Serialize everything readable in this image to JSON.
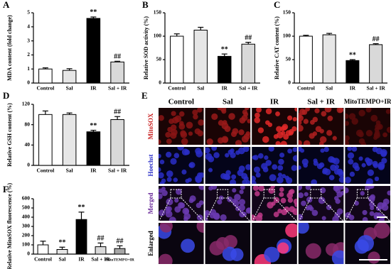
{
  "chart_data": [
    {
      "type": "bar",
      "panel": "A",
      "y_label": "MDA content (fold change)",
      "categories": [
        "Control",
        "Sal",
        "IR",
        "Sal + IR"
      ],
      "values": [
        1.0,
        0.9,
        4.6,
        1.5
      ],
      "errors": [
        0.08,
        0.12,
        0.1,
        0.05
      ],
      "colors": [
        "#ffffff",
        "#e6e6e6",
        "#000000",
        "#d9d9d9"
      ],
      "significance": [
        null,
        null,
        "**",
        "##"
      ],
      "ylim": [
        0,
        5
      ],
      "yticks": [
        0,
        1,
        2,
        3,
        4,
        5
      ]
    },
    {
      "type": "bar",
      "panel": "B",
      "y_label": "Relative SOD activity (%)",
      "categories": [
        "Control",
        "Sal",
        "IR",
        "Sal + IR"
      ],
      "values": [
        100,
        113,
        57,
        83
      ],
      "errors": [
        5,
        6,
        5,
        4
      ],
      "colors": [
        "#ffffff",
        "#e6e6e6",
        "#000000",
        "#d9d9d9"
      ],
      "significance": [
        null,
        null,
        "**",
        "##"
      ],
      "ylim": [
        0,
        150
      ],
      "yticks": [
        0,
        50,
        100,
        150
      ]
    },
    {
      "type": "bar",
      "panel": "C",
      "y_label": "Relative CAT content (%)",
      "categories": [
        "Control",
        "Sal",
        "IR",
        "Sal + IR"
      ],
      "values": [
        100,
        103,
        48,
        82
      ],
      "errors": [
        2,
        3,
        2,
        2
      ],
      "colors": [
        "#ffffff",
        "#e6e6e6",
        "#000000",
        "#d9d9d9"
      ],
      "significance": [
        null,
        null,
        "**",
        "##"
      ],
      "ylim": [
        0,
        150
      ],
      "yticks": [
        0,
        50,
        100,
        150
      ]
    },
    {
      "type": "bar",
      "panel": "D",
      "y_label": "Relative GSH content (%)",
      "categories": [
        "Control",
        "Sal",
        "IR",
        "Sal + IR"
      ],
      "values": [
        100,
        100,
        66,
        90
      ],
      "errors": [
        7,
        3,
        3,
        6
      ],
      "colors": [
        "#ffffff",
        "#e6e6e6",
        "#000000",
        "#d9d9d9"
      ],
      "significance": [
        null,
        null,
        "**",
        "##"
      ],
      "ylim": [
        0,
        120
      ],
      "yticks": [
        0,
        40,
        80,
        120
      ]
    },
    {
      "type": "bar",
      "panel": "F",
      "y_label": "Relative MitoSOX fluorescence (%)",
      "categories": [
        "Control",
        "Sal",
        "IR",
        "Sal + IR",
        "MitoTEMPO+IR"
      ],
      "values": [
        100,
        50,
        375,
        80,
        60
      ],
      "errors": [
        40,
        25,
        80,
        40,
        30
      ],
      "colors": [
        "#ffffff",
        "#e6e6e6",
        "#000000",
        "#d9d9d9",
        "#a6a6a6"
      ],
      "significance": [
        null,
        "**",
        "**",
        "##",
        "##"
      ],
      "ylim": [
        0,
        600
      ],
      "yticks": [
        0,
        100,
        200,
        300,
        400,
        500,
        600
      ]
    }
  ],
  "panel_e": {
    "panel": "E",
    "columns": [
      "Control",
      "Sal",
      "IR",
      "Sal + IR",
      "MitoTEMPO+IR"
    ],
    "rows": [
      "MitoSOX",
      "Hoechst",
      "Merged",
      "Enlarged"
    ]
  }
}
